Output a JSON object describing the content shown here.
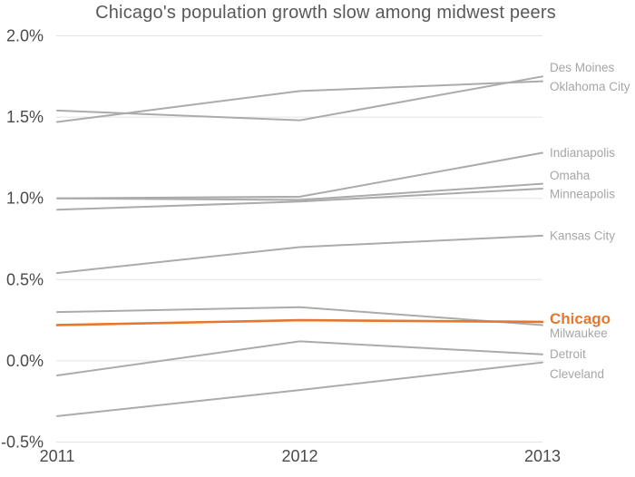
{
  "chart_data": {
    "type": "line",
    "title": "Chicago's population growth slow among midwest peers",
    "x": [
      2011,
      2012,
      2013
    ],
    "x_tick_labels": [
      "2011",
      "2012",
      "2013"
    ],
    "y_ticks": [
      2.0,
      1.5,
      1.0,
      0.5,
      0.0,
      -0.5
    ],
    "y_tick_labels": [
      "2.0%",
      "1.5%",
      "1.0%",
      "0.5%",
      "0.0%",
      "-0.5%"
    ],
    "ylim": [
      -0.5,
      2.0
    ],
    "unit": "%",
    "grid": "horizontal",
    "legend_position": "labels-at-line-ends-right",
    "series": [
      {
        "name": "Des Moines",
        "values": [
          1.54,
          1.48,
          1.75
        ],
        "emphasis": false,
        "label_dy": -10
      },
      {
        "name": "Oklahoma City",
        "values": [
          1.47,
          1.66,
          1.72
        ],
        "emphasis": false,
        "label_dy": 6
      },
      {
        "name": "Indianapolis",
        "values": [
          1.0,
          1.01,
          1.28
        ],
        "emphasis": false,
        "label_dy": 0
      },
      {
        "name": "Omaha",
        "values": [
          1.0,
          0.99,
          1.09
        ],
        "emphasis": false,
        "label_dy": -9
      },
      {
        "name": "Minneapolis",
        "values": [
          0.93,
          0.98,
          1.06
        ],
        "emphasis": false,
        "label_dy": 6
      },
      {
        "name": "Kansas City",
        "values": [
          0.54,
          0.7,
          0.77
        ],
        "emphasis": false,
        "label_dy": 0
      },
      {
        "name": "Milwaukee",
        "values": [
          0.3,
          0.33,
          0.22
        ],
        "emphasis": false,
        "label_dy": 9
      },
      {
        "name": "Detroit",
        "values": [
          -0.09,
          0.12,
          0.04
        ],
        "emphasis": false,
        "label_dy": 0
      },
      {
        "name": "Cleveland",
        "values": [
          -0.34,
          -0.18,
          -0.01
        ],
        "emphasis": false,
        "label_dy": 13
      },
      {
        "name": "Chicago",
        "values": [
          0.22,
          0.25,
          0.24
        ],
        "emphasis": true,
        "label_dy": -4
      }
    ],
    "colors": {
      "line_gray": "#ababab",
      "accent_orange": "#e8762c",
      "grid": "#e4e4e4",
      "axis_text": "#4a4a4a",
      "label_gray": "#a6a6a6",
      "title_text": "#595959"
    }
  }
}
